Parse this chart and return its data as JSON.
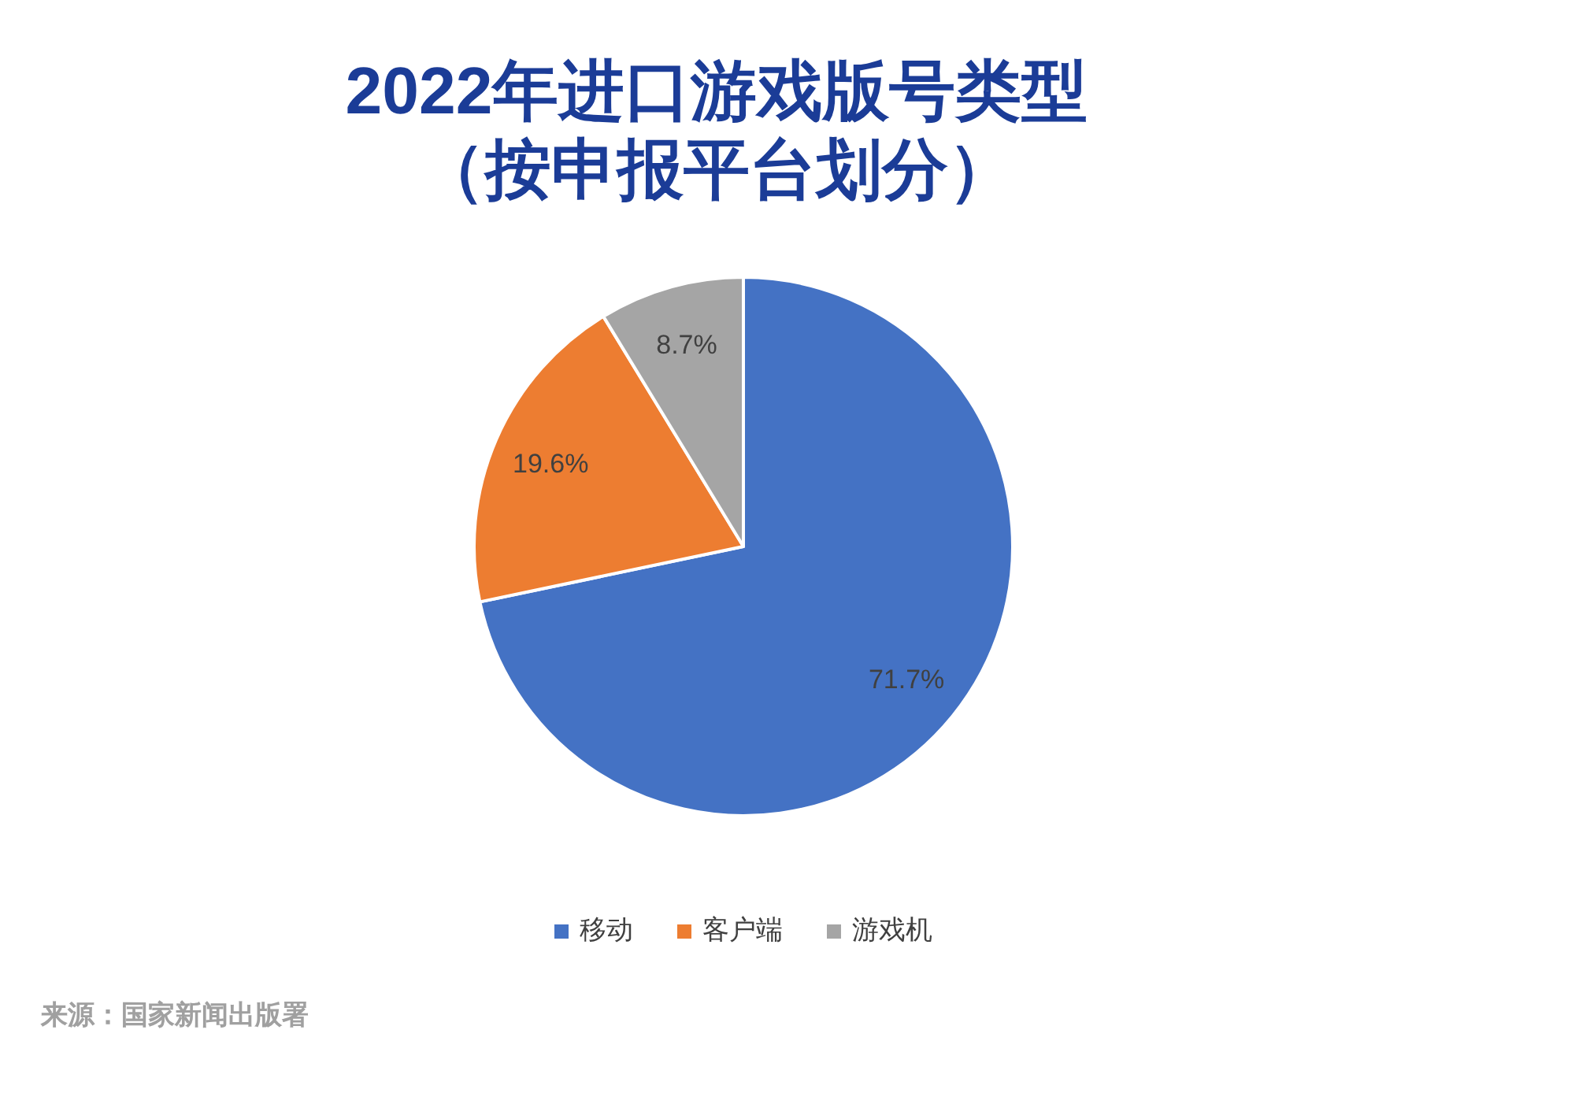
{
  "chart_data": {
    "type": "pie",
    "title": "2022年进口游戏版号类型",
    "subtitle": "（按申报平台划分）",
    "categories": [
      "移动",
      "客户端",
      "游戏机"
    ],
    "values": [
      71.7,
      19.6,
      8.7
    ],
    "colors": [
      "#4472c4",
      "#ed7d31",
      "#a5a5a5"
    ],
    "value_labels": [
      "71.7%",
      "19.6%",
      "8.7%"
    ],
    "legend": "bottom",
    "annotations": [
      "来源：国家新闻出版署"
    ]
  }
}
